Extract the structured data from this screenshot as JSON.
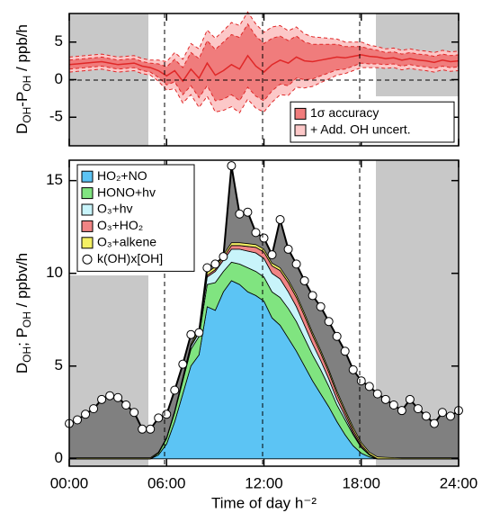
{
  "chart_data": [
    {
      "type": "band",
      "y_label": [
        "D",
        "OH",
        "-P",
        "OH",
        " / ppb/h"
      ],
      "x": [
        0,
        0.5,
        1,
        1.5,
        2,
        2.5,
        3,
        3.5,
        4,
        4.5,
        5,
        5.5,
        6,
        6.5,
        7,
        7.5,
        8,
        8.5,
        9,
        9.5,
        10,
        10.5,
        11,
        11.5,
        12,
        12.5,
        13,
        13.5,
        14,
        14.5,
        15,
        15.5,
        16,
        16.5,
        17,
        17.5,
        18,
        18.5,
        19,
        19.5,
        20,
        20.5,
        21,
        21.5,
        22,
        22.5,
        23,
        23.5,
        24
      ],
      "xlim": [
        0,
        24
      ],
      "xticks": [
        0,
        6,
        12,
        18,
        24
      ],
      "ylim": [
        -8.8,
        8.8
      ],
      "yticks": [
        5,
        0,
        -5
      ],
      "legend": "lower right",
      "line": {
        "color": "#e02828",
        "values": [
          2.0,
          2.1,
          2.2,
          2.3,
          2.4,
          2.2,
          2.0,
          2.1,
          2.2,
          1.8,
          1.6,
          1.2,
          0.5,
          1.2,
          -0.2,
          1.4,
          0.2,
          2.2,
          0.6,
          1.2,
          2.0,
          1.4,
          3.2,
          1.8,
          1.0,
          2.0,
          2.6,
          2.2,
          3.0,
          2.5,
          2.4,
          2.6,
          2.8,
          3.0,
          2.9,
          3.1,
          3.3,
          3.1,
          3.0,
          2.8,
          2.9,
          2.6,
          2.8,
          2.6,
          2.5,
          2.3,
          2.6,
          2.4,
          2.5
        ]
      },
      "series": [
        {
          "name": "1σ accuracy",
          "color": "#f07c7c",
          "values": [
            0.6,
            0.6,
            0.6,
            0.6,
            0.6,
            0.6,
            0.6,
            0.6,
            0.6,
            0.6,
            0.6,
            0.9,
            1.2,
            1.5,
            1.8,
            2.2,
            2.6,
            3.0,
            3.4,
            3.8,
            4.0,
            4.2,
            4.2,
            4.0,
            3.8,
            3.5,
            3.2,
            3.0,
            2.8,
            2.5,
            2.3,
            2.1,
            1.9,
            1.7,
            1.5,
            1.3,
            1.1,
            1.0,
            0.9,
            0.8,
            0.8,
            0.8,
            0.8,
            0.8,
            0.8,
            0.8,
            0.8,
            0.8,
            0.8
          ]
        },
        {
          "name": "+ Add. OH uncert.",
          "color": "#fcc8c8",
          "values": [
            1.0,
            1.0,
            1.0,
            1.0,
            1.0,
            1.0,
            1.0,
            1.0,
            1.0,
            1.0,
            1.0,
            1.4,
            1.9,
            2.4,
            2.9,
            3.4,
            3.9,
            4.4,
            4.9,
            5.3,
            5.6,
            5.8,
            5.8,
            5.6,
            5.3,
            5.0,
            4.6,
            4.3,
            4.0,
            3.6,
            3.3,
            3.0,
            2.7,
            2.4,
            2.1,
            1.9,
            1.7,
            1.5,
            1.4,
            1.3,
            1.3,
            1.3,
            1.3,
            1.3,
            1.3,
            1.3,
            1.3,
            1.3,
            1.3
          ]
        }
      ]
    },
    {
      "type": "stacked_area",
      "y_label": [
        "D",
        "OH",
        "; P",
        "OH",
        " / ppbv/h"
      ],
      "x_label": "Time of day h⁻²",
      "x": [
        0,
        0.5,
        1,
        1.5,
        2,
        2.5,
        3,
        3.5,
        4,
        4.5,
        5,
        5.5,
        6,
        6.5,
        7,
        7.5,
        8,
        8.5,
        9,
        9.5,
        10,
        10.5,
        11,
        11.5,
        12,
        12.5,
        13,
        13.5,
        14,
        14.5,
        15,
        15.5,
        16,
        16.5,
        17,
        17.5,
        18,
        18.5,
        19,
        19.5,
        20,
        20.5,
        21,
        21.5,
        22,
        22.5,
        23,
        23.5,
        24
      ],
      "xlim": [
        0,
        24
      ],
      "xticks": [
        {
          "value": 0,
          "label": "00:00"
        },
        {
          "value": 6,
          "label": "06:00"
        },
        {
          "value": 12,
          "label": "12:00"
        },
        {
          "value": 18,
          "label": "18:00"
        },
        {
          "value": 24,
          "label": "24:00"
        }
      ],
      "ylim": [
        -0.4,
        16.1
      ],
      "yticks": [
        0,
        5,
        10,
        15
      ],
      "legend": "upper left",
      "series": [
        {
          "name": "HO₂+NO",
          "color": "#5cc4f4",
          "values": [
            0,
            0,
            0,
            0,
            0,
            0,
            0,
            0,
            0,
            0,
            0,
            0.2,
            0.8,
            2.0,
            3.5,
            5.0,
            5.6,
            8.2,
            8.0,
            9.0,
            9.6,
            9.4,
            9.0,
            8.8,
            8.5,
            7.6,
            7.2,
            6.5,
            5.8,
            5.0,
            4.2,
            3.5,
            2.8,
            2.0,
            1.3,
            0.7,
            0.3,
            0.1,
            0,
            0,
            0,
            0,
            0,
            0,
            0,
            0,
            0,
            0,
            0
          ]
        },
        {
          "name": "HONO+hv",
          "color": "#80e480",
          "values": [
            0,
            0,
            0,
            0,
            0,
            0,
            0,
            0,
            0,
            0,
            0,
            0.1,
            0.3,
            0.5,
            0.7,
            0.9,
            1.0,
            1.2,
            1.5,
            1.1,
            1.0,
            1.1,
            1.3,
            1.3,
            1.3,
            1.4,
            1.5,
            1.6,
            1.6,
            1.5,
            1.4,
            1.3,
            1.1,
            0.9,
            0.8,
            0.6,
            0.3,
            0.1,
            0,
            0,
            0,
            0,
            0,
            0,
            0,
            0,
            0,
            0,
            0
          ]
        },
        {
          "name": "O₃+hv",
          "color": "#c8f4fa",
          "values": [
            0,
            0,
            0,
            0,
            0,
            0,
            0,
            0,
            0,
            0,
            0,
            0,
            0,
            0.05,
            0.1,
            0.15,
            0.2,
            0.4,
            0.6,
            0.6,
            0.7,
            0.8,
            0.9,
            1.0,
            1.0,
            1.0,
            1.0,
            0.9,
            0.8,
            0.7,
            0.6,
            0.5,
            0.4,
            0.3,
            0.2,
            0.1,
            0.05,
            0,
            0,
            0,
            0,
            0,
            0,
            0,
            0,
            0,
            0,
            0,
            0
          ]
        },
        {
          "name": "O₃+HO₂",
          "color": "#f08484",
          "values": [
            0,
            0,
            0,
            0,
            0,
            0,
            0,
            0,
            0,
            0,
            0,
            0,
            0,
            0,
            0.02,
            0.05,
            0.05,
            0.1,
            0.1,
            0.15,
            0.2,
            0.2,
            0.25,
            0.3,
            0.35,
            0.4,
            0.45,
            0.5,
            0.5,
            0.5,
            0.45,
            0.4,
            0.35,
            0.3,
            0.2,
            0.15,
            0.1,
            0.05,
            0,
            0,
            0,
            0,
            0,
            0,
            0,
            0,
            0,
            0,
            0
          ]
        },
        {
          "name": "O₃+alkene",
          "color": "#f4f064",
          "values": [
            0.05,
            0.05,
            0.05,
            0.05,
            0.05,
            0.05,
            0.05,
            0.05,
            0.05,
            0.05,
            0.05,
            0.05,
            0.05,
            0.05,
            0.08,
            0.1,
            0.12,
            0.15,
            0.15,
            0.15,
            0.15,
            0.15,
            0.15,
            0.15,
            0.15,
            0.15,
            0.15,
            0.15,
            0.15,
            0.15,
            0.15,
            0.15,
            0.15,
            0.15,
            0.15,
            0.15,
            0.12,
            0.1,
            0.1,
            0.08,
            0.06,
            0.05,
            0.05,
            0.05,
            0.05,
            0.05,
            0.05,
            0.05,
            0.05
          ]
        }
      ],
      "total": {
        "name": "k(OH)x[OH]",
        "color": "#808080",
        "values": [
          1.9,
          2.1,
          2.4,
          2.7,
          3.2,
          3.4,
          3.3,
          2.9,
          2.5,
          1.6,
          1.6,
          2.2,
          2.4,
          3.7,
          5.1,
          6.7,
          6.8,
          10.3,
          10.5,
          10.9,
          15.8,
          13.2,
          13.3,
          12.2,
          11.9,
          11.0,
          12.9,
          11.3,
          10.5,
          9.6,
          8.8,
          8.2,
          7.4,
          6.6,
          5.8,
          4.8,
          4.2,
          3.9,
          3.5,
          3.2,
          2.9,
          2.6,
          3.2,
          2.7,
          2.3,
          1.9,
          2.5,
          2.3,
          2.6
        ]
      }
    }
  ]
}
